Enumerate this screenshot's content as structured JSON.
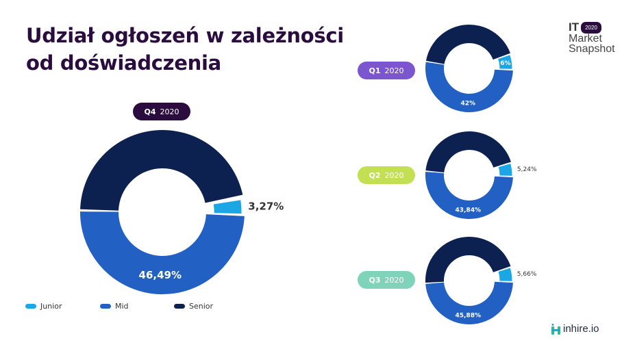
{
  "title_line1": "Udział ogłoszeń w zależności",
  "title_line2": "od doświadczenia",
  "brand": {
    "it": "IT",
    "year": "2020",
    "line2": "Market",
    "line3": "Snapshot",
    "logo_text": "inhire.io"
  },
  "colors": {
    "junior": "#1ba7e6",
    "mid": "#2261c3",
    "senior": "#0d2150",
    "title": "#2a0d3e"
  },
  "legend": [
    {
      "label": "Junior",
      "color": "#1ba7e6"
    },
    {
      "label": "Mid",
      "color": "#2261c3"
    },
    {
      "label": "Senior",
      "color": "#0d2150"
    }
  ],
  "pills": [
    {
      "q": "Q4",
      "year": "2020",
      "bg": "#2a0d3e",
      "fg": "#ffffff"
    },
    {
      "q": "Q1",
      "year": "2020",
      "bg": "#7c56cf",
      "fg": "#ffffff"
    },
    {
      "q": "Q2",
      "year": "2020",
      "bg": "#c2e052",
      "fg": "#ffffff"
    },
    {
      "q": "Q3",
      "year": "2020",
      "bg": "#7fd3b8",
      "fg": "#ffffff"
    }
  ],
  "chart_data": [
    {
      "type": "pie",
      "title": "Q4 2020",
      "categories": [
        "Junior",
        "Mid",
        "Senior"
      ],
      "values": [
        3.27,
        49.78,
        46.49
      ],
      "labels": [
        "3,27%",
        "49,78%",
        "46,49%"
      ]
    },
    {
      "type": "pie",
      "title": "Q1 2020",
      "categories": [
        "Junior",
        "Mid",
        "Senior"
      ],
      "values": [
        6,
        52,
        42
      ],
      "labels": [
        "6%",
        "52%",
        "42%"
      ]
    },
    {
      "type": "pie",
      "title": "Q2 2020",
      "categories": [
        "Junior",
        "Mid",
        "Senior"
      ],
      "values": [
        5.24,
        50.92,
        43.84
      ],
      "labels": [
        "5,24%",
        "50,92%",
        "43,84%"
      ]
    },
    {
      "type": "pie",
      "title": "Q3 2020",
      "categories": [
        "Junior",
        "Mid",
        "Senior"
      ],
      "values": [
        5.66,
        48.46,
        45.88
      ],
      "labels": [
        "5,66%",
        "48,46%",
        "45,88%"
      ]
    }
  ]
}
